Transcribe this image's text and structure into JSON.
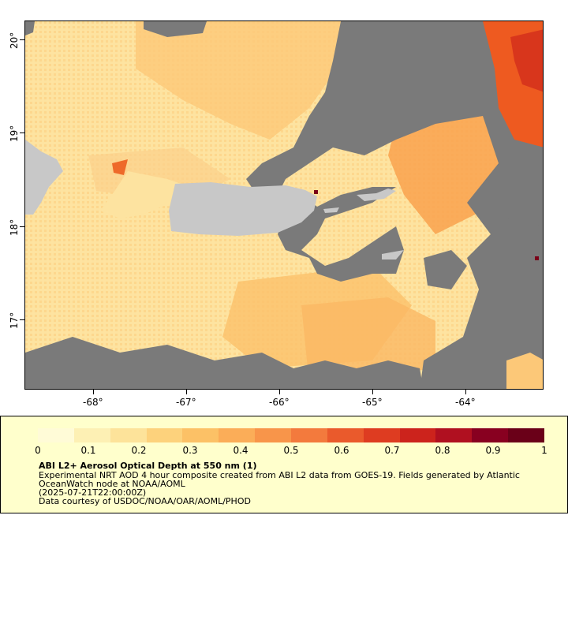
{
  "map": {
    "lat_ticks": [
      "20°",
      "19°",
      "18°",
      "17°"
    ],
    "lon_ticks": [
      "-68°",
      "-67°",
      "-66°",
      "-65°",
      "-64°"
    ],
    "colors": {
      "no_data": "#7a7a7a",
      "land": "#c8c8c8",
      "low": "#fff4bd",
      "mid": "#fbc563",
      "high": "#ee5a20",
      "max": "#7a0018"
    }
  },
  "legend": {
    "colorbar_stops": [
      "#fffbd7",
      "#fdf0b4",
      "#fde39a",
      "#fdd27c",
      "#fcc166",
      "#fbad58",
      "#f8954a",
      "#f37a3d",
      "#ea5a2c",
      "#de3c21",
      "#cc231c",
      "#b01020",
      "#880020",
      "#6a0018"
    ],
    "tick_labels": [
      "0",
      "0.1",
      "0.2",
      "0.3",
      "0.4",
      "0.5",
      "0.6",
      "0.7",
      "0.8",
      "0.9",
      "1"
    ],
    "title": "ABI L2+ Aerosol Optical Depth at 550 nm (1)",
    "description_line1": "Experimental NRT AOD 4 hour composite created from ABI L2 data from GOES-19. Fields generated by Atlantic",
    "description_line2": "OceanWatch node at NOAA/AOML",
    "timestamp": "(2025-07-21T22:00:00Z)",
    "credit": "Data courtesy of USDOC/NOAA/OAR/AOML/PHOD"
  }
}
